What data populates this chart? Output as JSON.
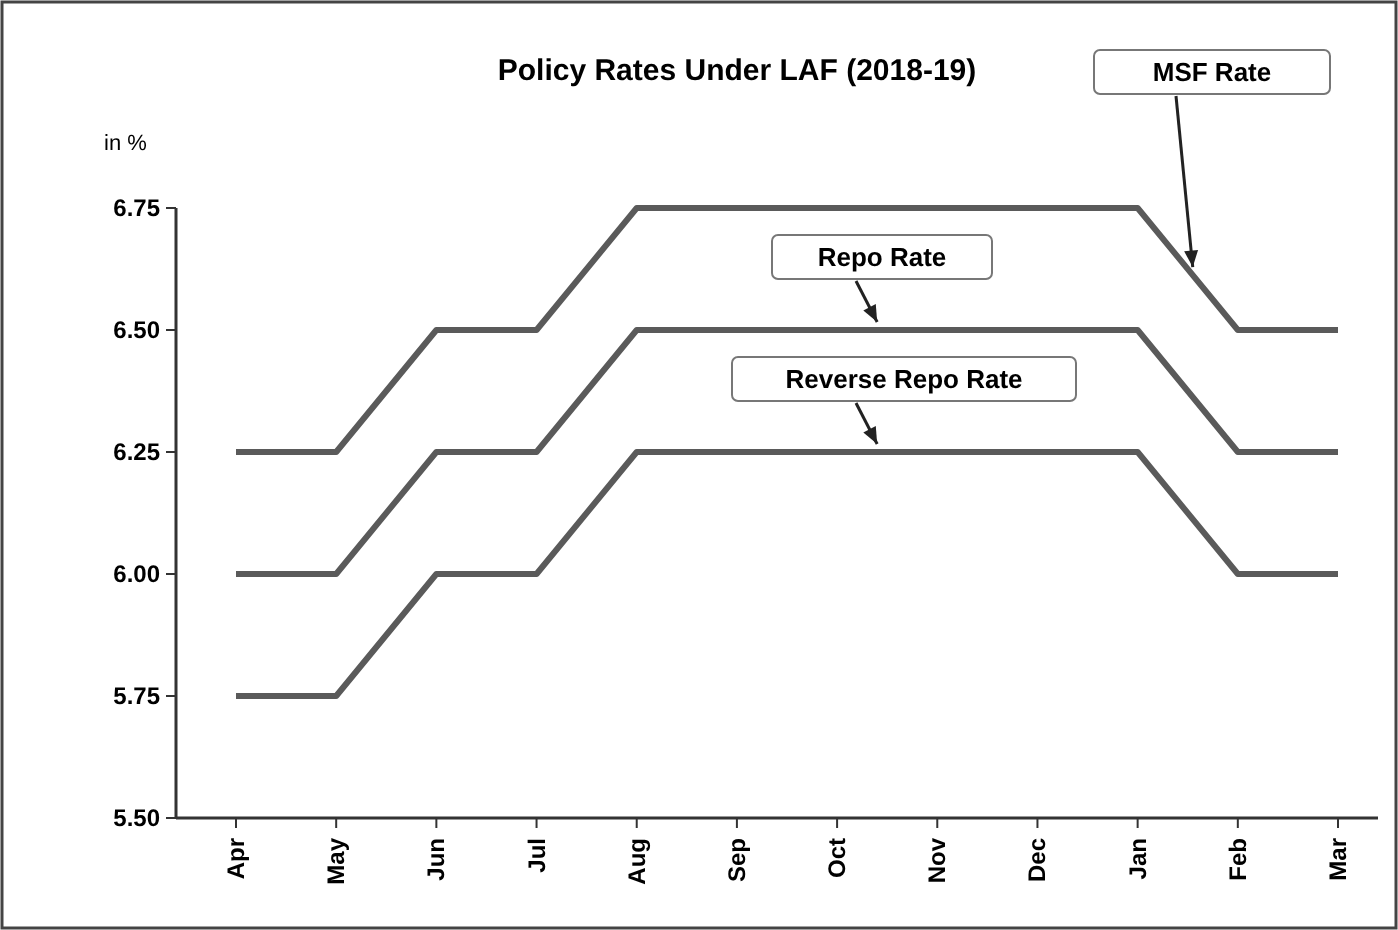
{
  "chart_data": {
    "type": "line",
    "title": "Policy Rates Under LAF (2018-19)",
    "ylabel": "in %",
    "categories": [
      "Apr",
      "May",
      "Jun",
      "Jul",
      "Aug",
      "Sep",
      "Oct",
      "Nov",
      "Dec",
      "Jan",
      "Feb",
      "Mar"
    ],
    "series": [
      {
        "name": "MSF Rate",
        "color": "#5a5a5a",
        "values": [
          6.25,
          6.25,
          6.5,
          6.5,
          6.75,
          6.75,
          6.75,
          6.75,
          6.75,
          6.75,
          6.5,
          6.5
        ]
      },
      {
        "name": "Repo Rate",
        "color": "#5a5a5a",
        "values": [
          6.0,
          6.0,
          6.25,
          6.25,
          6.5,
          6.5,
          6.5,
          6.5,
          6.5,
          6.5,
          6.25,
          6.25
        ]
      },
      {
        "name": "Reverse Repo Rate",
        "color": "#5a5a5a",
        "values": [
          5.75,
          5.75,
          6.0,
          6.0,
          6.25,
          6.25,
          6.25,
          6.25,
          6.25,
          6.25,
          6.0,
          6.0
        ]
      }
    ],
    "ylim": [
      5.5,
      6.75
    ],
    "yticks": [
      {
        "value": 5.5,
        "label": "5.50"
      },
      {
        "value": 5.75,
        "label": "5.75"
      },
      {
        "value": 6.0,
        "label": "6.00"
      },
      {
        "value": 6.25,
        "label": "6.25"
      },
      {
        "value": 6.5,
        "label": "6.50"
      },
      {
        "value": 6.75,
        "label": "6.75"
      }
    ],
    "grid": false,
    "legend": false,
    "marker": "none",
    "line_style": "solid"
  }
}
